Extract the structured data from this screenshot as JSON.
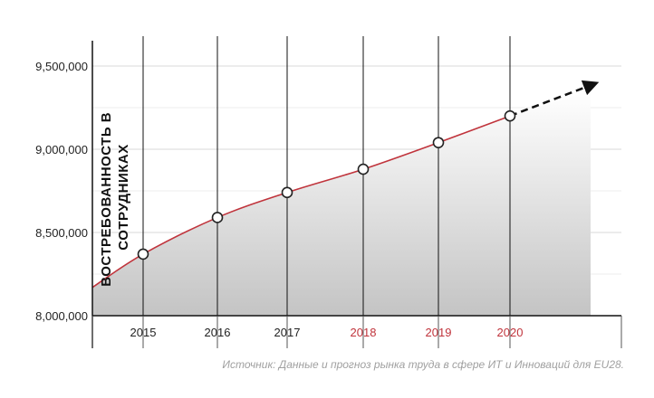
{
  "chart_data": {
    "type": "area",
    "ylabel_lines": [
      "ВОСТРЕБОВАННОСТЬ В",
      "СОТРУДНИКАХ"
    ],
    "xlabel": "",
    "ylim": [
      8000000,
      9500000
    ],
    "y_ticks": [
      8000000,
      8500000,
      9000000,
      9500000
    ],
    "y_tick_labels": [
      "8,000,000",
      "8,500,000",
      "9,000,000",
      "9,500,000"
    ],
    "categories": [
      "2015",
      "2016",
      "2017",
      "2018",
      "2019",
      "2020"
    ],
    "forecast_from": "2018",
    "values": [
      8370000,
      8590000,
      8740000,
      8880000,
      9040000,
      9200000
    ],
    "grid": true,
    "colors": {
      "line": "#c0343c",
      "actual_label": "#222222",
      "forecast_label": "#c0343c",
      "area_top": "#ffffff",
      "area_bottom": "#c4c4c4",
      "marker_fill": "#ffffff",
      "marker_stroke": "#222222",
      "trend_arrow": "#111111"
    }
  },
  "source": "Источник: Данные и прогноз рынка труда в сфере ИТ и Инноваций для EU28."
}
